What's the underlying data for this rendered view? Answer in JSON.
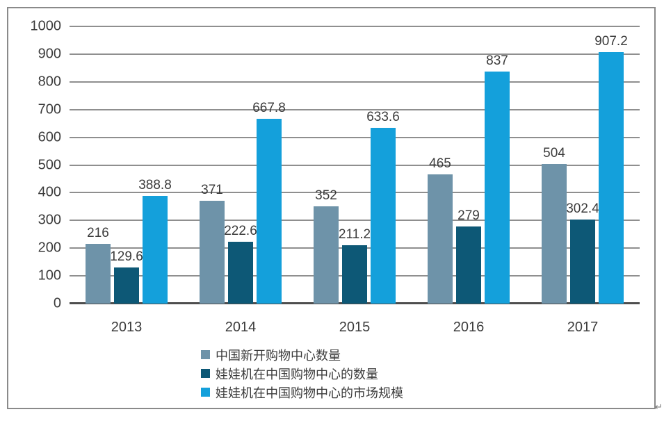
{
  "chart_data": {
    "type": "bar",
    "title": "",
    "xlabel": "",
    "ylabel": "",
    "categories": [
      "2013",
      "2014",
      "2015",
      "2016",
      "2017"
    ],
    "series": [
      {
        "name": "中国新开购物中心数量",
        "color": "#6E93A9",
        "values": [
          216,
          371,
          352,
          465,
          504
        ]
      },
      {
        "name": "娃娃机在中国购物中心的数量",
        "color": "#0D5876",
        "values": [
          129.6,
          222.6,
          211.2,
          279,
          302.4
        ]
      },
      {
        "name": "娃娃机在中国购物中心的市场规模",
        "color": "#14A0DB",
        "values": [
          388.8,
          667.8,
          633.6,
          837,
          907.2
        ]
      }
    ],
    "ylim": [
      0,
      1000
    ],
    "yticks": [
      0,
      100,
      200,
      300,
      400,
      500,
      600,
      700,
      800,
      900,
      1000
    ],
    "grid": true,
    "value_labels": true,
    "legend_position": "bottom"
  },
  "decorations": {
    "return_mark": "↵"
  },
  "colors": {
    "gridline": "#8f8f8f",
    "axis_line": "#4d4d4d",
    "frame_border": "#8a8a8a",
    "text": "#3b3b3b",
    "background": "#ffffff"
  }
}
